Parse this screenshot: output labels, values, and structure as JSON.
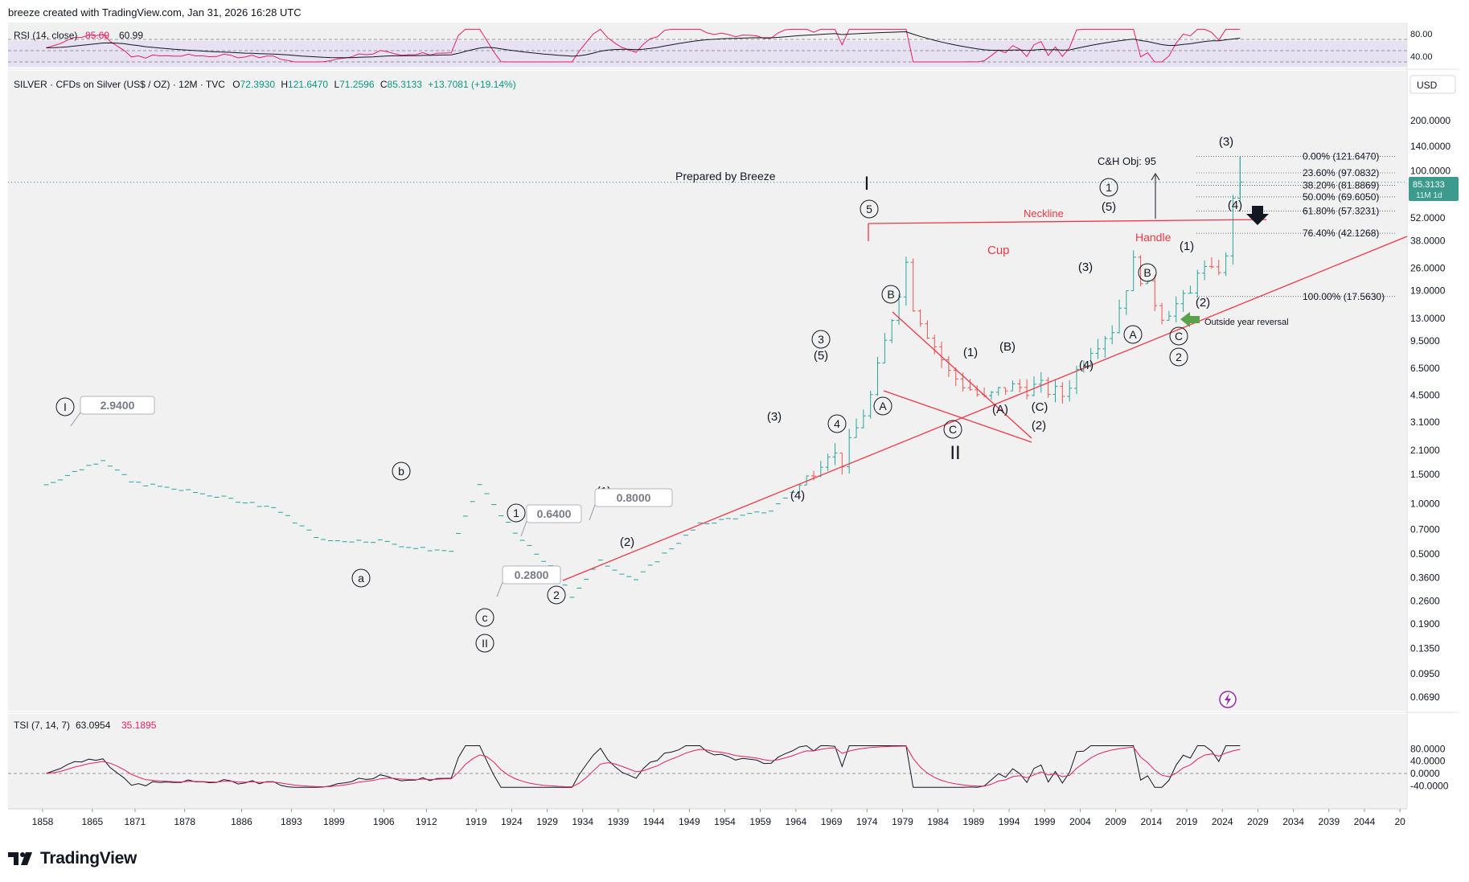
{
  "header": {
    "credit": "breeze created with TradingView.com, Jan 31, 2026 16:28 UTC"
  },
  "footer": {
    "brand": "TradingView"
  },
  "rsi_legend": {
    "name": "RSI (14, close)",
    "value1": "85.69",
    "value2": "60.99"
  },
  "symbol_legend": {
    "name": "SILVER · CFDs on Silver (US$ / OZ) · 12M · TVC",
    "o_label": "O",
    "o": "72.3930",
    "h_label": "H",
    "h": "121.6470",
    "l_label": "L",
    "l": "71.2596",
    "c_label": "C",
    "c": "85.3133",
    "change": "+13.7081 (+19.14%)"
  },
  "tsi_legend": {
    "name": "TSI (7, 14, 7)",
    "value1": "63.0954",
    "value2": "35.1895"
  },
  "currency": "USD",
  "price_badge": {
    "price": "85.3133",
    "countdown": "11M 1d"
  },
  "colors": {
    "up": "#26a69a",
    "down": "#ef5350",
    "trend": "#f23645",
    "fib": "#131722",
    "rsi": "#e91e63",
    "tsi_signal": "#e91e63"
  },
  "annotations": {
    "prepared": "Prepared by Breeze",
    "ch_obj": "C&H Obj: 95",
    "neckline": "Neckline",
    "cup": "Cup",
    "handle": "Handle",
    "outside": "Outside year reversal"
  },
  "chart_data": [
    {
      "type": "line",
      "name": "RSI (14, close)",
      "y_ticks": [
        "80.00",
        "40.00"
      ],
      "levels": [
        70,
        50,
        30
      ],
      "last": [
        85.69,
        60.99
      ]
    },
    {
      "type": "candlestick",
      "name": "SILVER yearly",
      "scale": "log",
      "x_ticks": [
        "1858",
        "1865",
        "1871",
        "1878",
        "1886",
        "1893",
        "1899",
        "1906",
        "1912",
        "1919",
        "1924",
        "1929",
        "1934",
        "1939",
        "1944",
        "1949",
        "1954",
        "1959",
        "1964",
        "1969",
        "1974",
        "1979",
        "1984",
        "1989",
        "1994",
        "1999",
        "2004",
        "2009",
        "2014",
        "2019",
        "2024",
        "2029",
        "2034",
        "2039",
        "2044",
        "20"
      ],
      "y_ticks": [
        "200.0000",
        "140.0000",
        "100.0000",
        "52.0000",
        "38.0000",
        "26.0000",
        "19.0000",
        "13.0000",
        "9.5000",
        "6.5000",
        "4.5000",
        "3.1000",
        "2.1000",
        "1.5000",
        "1.0000",
        "0.7000",
        "0.5000",
        "0.3600",
        "0.2600",
        "0.1900",
        "0.1350",
        "0.0950",
        "0.0690"
      ],
      "approx_close": [
        [
          1858,
          1.3
        ],
        [
          1866,
          1.85
        ],
        [
          1870,
          1.35
        ],
        [
          1880,
          1.15
        ],
        [
          1890,
          0.95
        ],
        [
          1897,
          0.6
        ],
        [
          1905,
          0.6
        ],
        [
          1910,
          0.54
        ],
        [
          1915,
          0.52
        ],
        [
          1919,
          1.3
        ],
        [
          1924,
          0.66
        ],
        [
          1930,
          0.38
        ],
        [
          1932,
          0.28
        ],
        [
          1936,
          0.45
        ],
        [
          1941,
          0.35
        ],
        [
          1945,
          0.5
        ],
        [
          1950,
          0.75
        ],
        [
          1960,
          0.91
        ],
        [
          1964,
          1.29
        ],
        [
          1968,
          2.1
        ],
        [
          1970,
          1.8
        ],
        [
          1974,
          4.4
        ],
        [
          1979,
          28
        ],
        [
          1980,
          15.8
        ],
        [
          1985,
          6.1
        ],
        [
          1990,
          4.2
        ],
        [
          1993,
          5.0
        ],
        [
          1998,
          5.0
        ],
        [
          2001,
          4.5
        ],
        [
          2005,
          8.8
        ],
        [
          2008,
          11.3
        ],
        [
          2011,
          28
        ],
        [
          2015,
          13.8
        ],
        [
          2019,
          17.8
        ],
        [
          2020,
          26.4
        ],
        [
          2022,
          24
        ],
        [
          2024,
          28.9
        ],
        [
          2025,
          72.4
        ],
        [
          2026,
          85.3
        ]
      ],
      "fib_levels": [
        {
          "label": "0.00% (121.6470)",
          "value": 121.647
        },
        {
          "label": "23.60% (97.0832)",
          "value": 97.0832
        },
        {
          "label": "38.20% (81.8869)",
          "value": 81.8869
        },
        {
          "label": "50.00% (69.6050)",
          "value": 69.605
        },
        {
          "label": "61.80% (57.3231)",
          "value": 57.3231
        },
        {
          "label": "76.40% (42.1268)",
          "value": 42.1268
        },
        {
          "label": "100.00% (17.5630)",
          "value": 17.563
        }
      ],
      "value_boxes": [
        "2.9400",
        "0.6400",
        "0.8000",
        "0.2800"
      ],
      "wave_labels": [
        "I",
        "a",
        "b",
        "c",
        "II",
        "1",
        "2",
        "(1)",
        "(2)",
        "(3)",
        "(4)",
        "(5)",
        "3",
        "4",
        "5",
        "I",
        "A",
        "B",
        "C",
        "II",
        "(1)",
        "(A)",
        "(B)",
        "(C)",
        "(2)",
        "(3)",
        "(4)",
        "(5)",
        "1",
        "A",
        "B",
        "C",
        "2",
        "(1)",
        "(2)",
        "(3)",
        "(4)"
      ]
    },
    {
      "type": "line",
      "name": "TSI (7, 14, 7)",
      "y_ticks": [
        "80.0000",
        "40.0000",
        "0.0000",
        "-40.0000"
      ],
      "last": [
        63.0954,
        35.1895
      ]
    }
  ]
}
